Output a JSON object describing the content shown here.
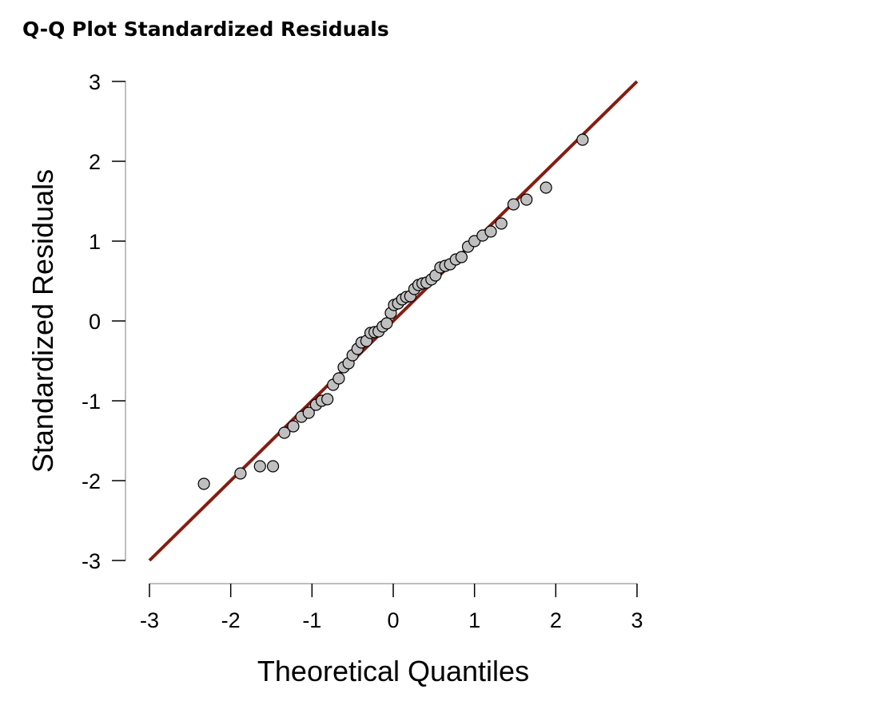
{
  "chart_data": {
    "type": "scatter",
    "title": "Q-Q Plot Standardized Residuals",
    "xlabel": "Theoretical Quantiles",
    "ylabel": "Standardized Residuals",
    "xlim": [
      -3,
      3
    ],
    "ylim": [
      -3,
      3
    ],
    "xticks": [
      "-3",
      "-2",
      "-1",
      "0",
      "1",
      "2",
      "3"
    ],
    "yticks": [
      "-3",
      "-2",
      "-1",
      "0",
      "1",
      "2",
      "3"
    ],
    "grid": false,
    "legend": "none",
    "point_color": "#bfbfbf",
    "point_edge_color": "#000000",
    "line_color": "#8b1a0e",
    "reference_line": {
      "x": [
        -3,
        3
      ],
      "y": [
        -3,
        3
      ]
    },
    "points": [
      {
        "x": -2.33,
        "y": -2.04
      },
      {
        "x": -1.88,
        "y": -1.91
      },
      {
        "x": -1.64,
        "y": -1.82
      },
      {
        "x": -1.48,
        "y": -1.82
      },
      {
        "x": -1.34,
        "y": -1.4
      },
      {
        "x": -1.23,
        "y": -1.32
      },
      {
        "x": -1.13,
        "y": -1.2
      },
      {
        "x": -1.04,
        "y": -1.15
      },
      {
        "x": -0.95,
        "y": -1.05
      },
      {
        "x": -0.88,
        "y": -1.0
      },
      {
        "x": -0.81,
        "y": -0.98
      },
      {
        "x": -0.74,
        "y": -0.8
      },
      {
        "x": -0.67,
        "y": -0.72
      },
      {
        "x": -0.61,
        "y": -0.58
      },
      {
        "x": -0.55,
        "y": -0.53
      },
      {
        "x": -0.5,
        "y": -0.43
      },
      {
        "x": -0.44,
        "y": -0.35
      },
      {
        "x": -0.39,
        "y": -0.27
      },
      {
        "x": -0.33,
        "y": -0.25
      },
      {
        "x": -0.28,
        "y": -0.15
      },
      {
        "x": -0.23,
        "y": -0.14
      },
      {
        "x": -0.18,
        "y": -0.13
      },
      {
        "x": -0.13,
        "y": -0.07
      },
      {
        "x": -0.08,
        "y": -0.03
      },
      {
        "x": -0.03,
        "y": 0.1
      },
      {
        "x": 0.01,
        "y": 0.2
      },
      {
        "x": 0.06,
        "y": 0.22
      },
      {
        "x": 0.11,
        "y": 0.27
      },
      {
        "x": 0.16,
        "y": 0.3
      },
      {
        "x": 0.21,
        "y": 0.31
      },
      {
        "x": 0.26,
        "y": 0.4
      },
      {
        "x": 0.31,
        "y": 0.45
      },
      {
        "x": 0.36,
        "y": 0.47
      },
      {
        "x": 0.41,
        "y": 0.48
      },
      {
        "x": 0.47,
        "y": 0.52
      },
      {
        "x": 0.52,
        "y": 0.57
      },
      {
        "x": 0.58,
        "y": 0.67
      },
      {
        "x": 0.64,
        "y": 0.69
      },
      {
        "x": 0.7,
        "y": 0.71
      },
      {
        "x": 0.77,
        "y": 0.77
      },
      {
        "x": 0.84,
        "y": 0.8
      },
      {
        "x": 0.92,
        "y": 0.93
      },
      {
        "x": 1.0,
        "y": 1.0
      },
      {
        "x": 1.1,
        "y": 1.07
      },
      {
        "x": 1.2,
        "y": 1.12
      },
      {
        "x": 1.33,
        "y": 1.22
      },
      {
        "x": 1.48,
        "y": 1.46
      },
      {
        "x": 1.64,
        "y": 1.52
      },
      {
        "x": 1.88,
        "y": 1.67
      },
      {
        "x": 2.33,
        "y": 2.27
      }
    ]
  }
}
